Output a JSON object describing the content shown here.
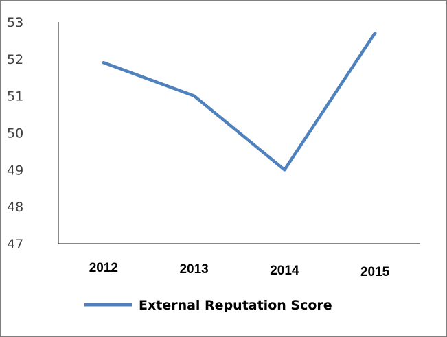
{
  "chart_data": {
    "type": "line",
    "categories": [
      "2012",
      "2013",
      "2014",
      "2015"
    ],
    "series": [
      {
        "name": "External Reputation Score",
        "values": [
          51.9,
          51.0,
          49.0,
          52.7
        ]
      }
    ],
    "ylim": [
      47,
      53
    ],
    "yticks": [
      "47",
      "48",
      "49",
      "50",
      "51",
      "52",
      "53"
    ],
    "xlabel": "",
    "ylabel": "",
    "title": "",
    "grid": false,
    "legend_position": "bottom",
    "series_color": "#4f81bd"
  }
}
